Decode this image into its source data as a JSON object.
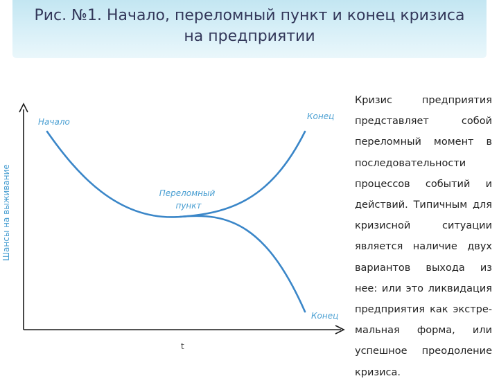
{
  "title": {
    "line1": "Рис. №1. Начало, переломный пункт и конец кризиса",
    "line2": "на предприятии"
  },
  "diagram": {
    "y_axis_label": "Шансы на выживание",
    "x_axis_label": "t",
    "labels": {
      "start": "Начало",
      "end_top": "Конец",
      "turning_line1": "Переломный",
      "turning_line2": "пункт",
      "end_bottom": "Конец"
    },
    "curve_color": "#3a86c8",
    "label_color": "#4a9fd2"
  },
  "body_text": "Кризис предприятия представляет собой переломный момент в последовательности процессов событий и действий. Типичным для кризисной ситуации является наличие двух вариантов выхода из нее: или это ликвидация предприятия как экстре-мальная форма, или успешное преодоление кризиса."
}
